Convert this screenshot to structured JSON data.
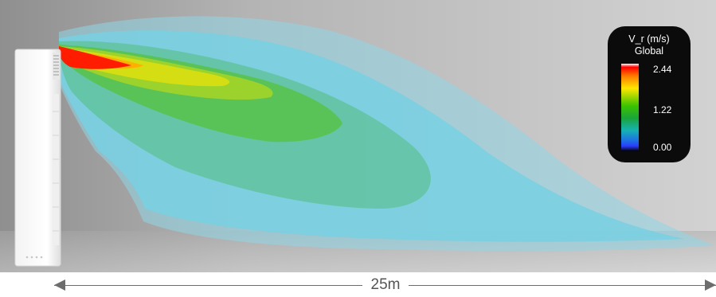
{
  "legend": {
    "title": "V_r (m/s)",
    "subtitle": "Global",
    "max_label": "2.44",
    "mid_label": "1.22",
    "min_label": "0.00"
  },
  "dimension": {
    "label": "25m"
  },
  "colors": {
    "background": "#bdbdbd",
    "legend_bg": "#0b0b0b",
    "flow_cyan": "#7ed7e7",
    "flow_green": "#57c25c",
    "flow_yellow": "#cfe01a",
    "flow_red": "#ff1a00"
  }
}
